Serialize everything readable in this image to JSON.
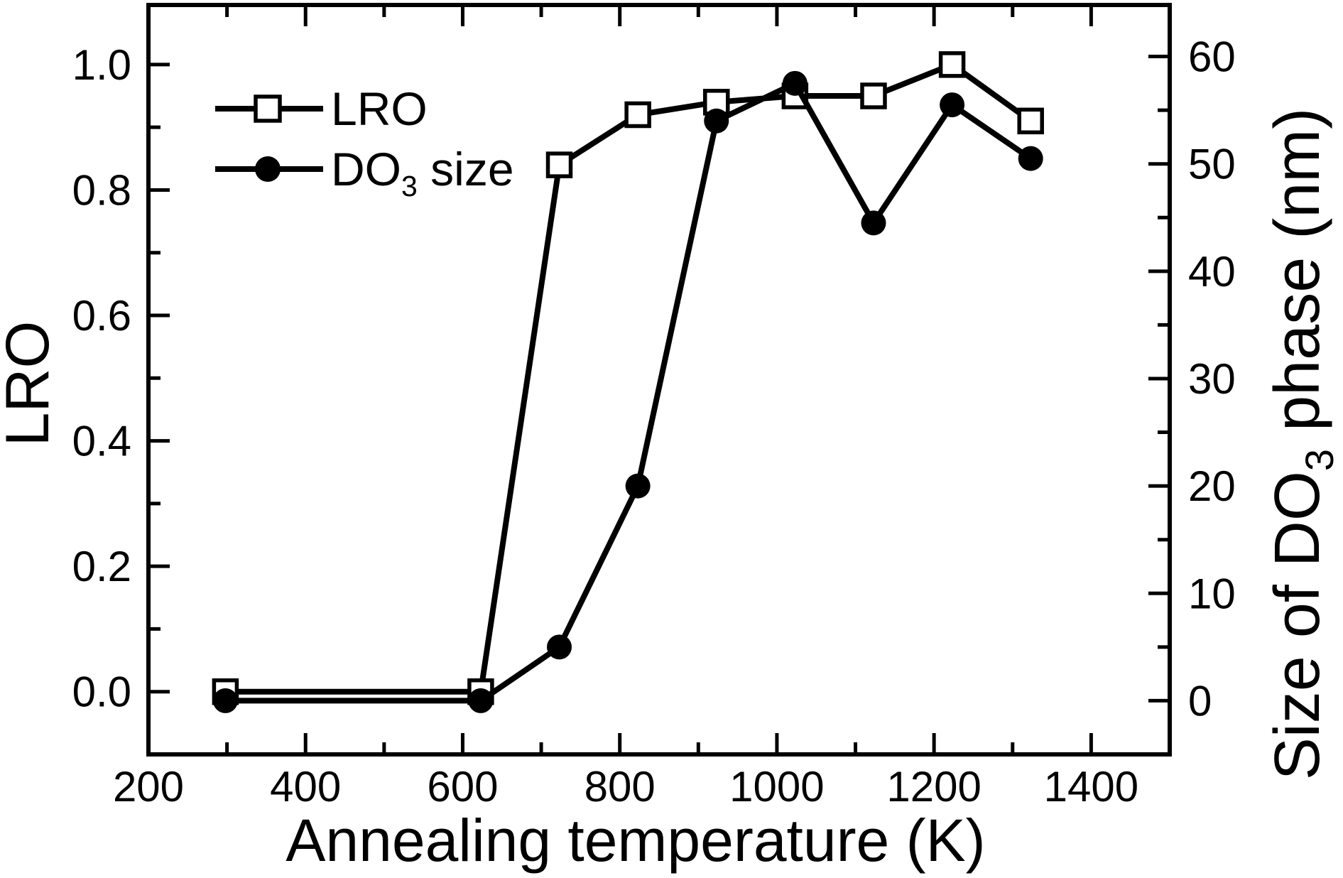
{
  "figure": {
    "background": "#ffffff",
    "ink_color": "#000000"
  },
  "chart_data": {
    "type": "line",
    "title": "",
    "xlabel": "Annealing temperature (K)",
    "ylabel_left": "LRO",
    "ylabel_right_parts": [
      {
        "text": "Size of DO"
      },
      {
        "text": "3",
        "sub": true
      },
      {
        "text": " phase (nm)"
      }
    ],
    "x_axis": {
      "min": 200,
      "max": 1500,
      "major_ticks": [
        200,
        400,
        600,
        800,
        1000,
        1200,
        1400
      ],
      "minor_ticks": [
        300,
        500,
        700,
        900,
        1100,
        1300
      ]
    },
    "y_left": {
      "min": -0.1,
      "max": 1.095,
      "major_ticks": [
        0.0,
        0.2,
        0.4,
        0.6,
        0.8,
        1.0
      ],
      "minor_ticks": [
        0.1,
        0.3,
        0.5,
        0.7,
        0.9
      ],
      "decimals": 1
    },
    "y_right": {
      "min": -5,
      "max": 64.8,
      "major_ticks": [
        0,
        10,
        20,
        30,
        40,
        50,
        60
      ],
      "minor_ticks": [
        5,
        15,
        25,
        35,
        45,
        55
      ],
      "decimals": 0
    },
    "grid": "off",
    "series": [
      {
        "name": "LRO",
        "axis": "left",
        "marker": "open-square",
        "color": "#000000",
        "x": [
          298,
          623,
          723,
          823,
          923,
          1023,
          1123,
          1223,
          1323
        ],
        "values": [
          0.0,
          0.0,
          0.84,
          0.92,
          0.94,
          0.95,
          0.95,
          1.0,
          0.91
        ]
      },
      {
        "name": "DO3 size",
        "axis": "right",
        "marker": "filled-circle",
        "color": "#000000",
        "x": [
          298,
          623,
          723,
          823,
          923,
          1023,
          1123,
          1223,
          1323
        ],
        "values": [
          0,
          0,
          5,
          20,
          54,
          57.5,
          44.5,
          55.5,
          50.5
        ]
      }
    ],
    "legend": {
      "position": "upper-left",
      "entries": [
        {
          "marker": "open-square",
          "label_parts": [
            {
              "text": "LRO"
            }
          ]
        },
        {
          "marker": "filled-circle",
          "label_parts": [
            {
              "text": "DO"
            },
            {
              "text": "3",
              "sub": true
            },
            {
              "text": " size"
            }
          ]
        }
      ]
    }
  }
}
